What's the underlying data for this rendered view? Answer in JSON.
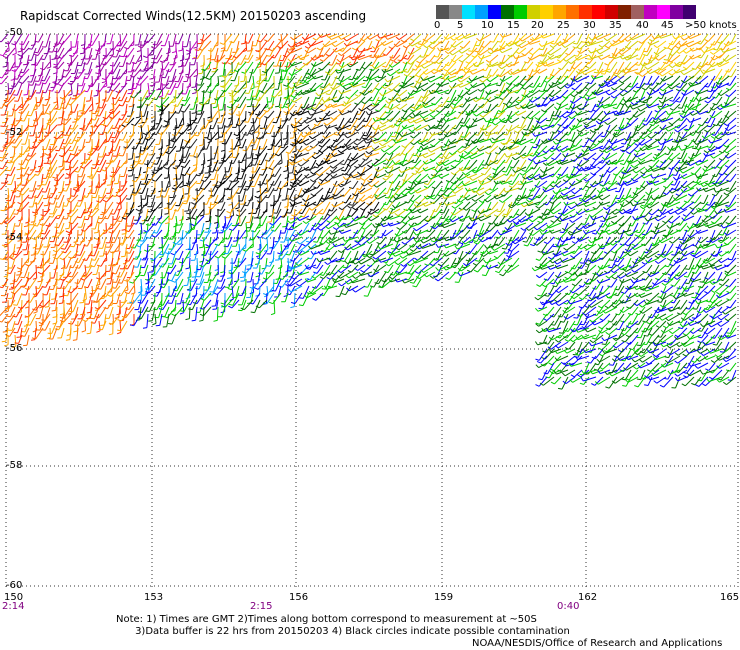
{
  "title": "Rapidscat Corrected Winds(12.5KM) 20150203 ascending",
  "legend": {
    "labels": [
      "0",
      "5",
      "10",
      "15",
      "20",
      "25",
      "30",
      "35",
      "40",
      "45",
      ">50 knots"
    ],
    "colors": [
      "#555555",
      "#888888",
      "#00e0ff",
      "#00a0ff",
      "#0000ff",
      "#007000",
      "#00cc00",
      "#d0d000",
      "#ffd000",
      "#ffa500",
      "#ff7000",
      "#ff3000",
      "#ff0000",
      "#d00000",
      "#802000",
      "#a06060",
      "#c000c0",
      "#ff00ff",
      "#8000a0",
      "#400070"
    ]
  },
  "latitudes": [
    "-50",
    "-52",
    "-54",
    "-56",
    "-58",
    "-60"
  ],
  "longitudes": [
    "150",
    "153",
    "156",
    "159",
    "162",
    "165"
  ],
  "times": [
    "2:14",
    "2:15",
    "0:40"
  ],
  "note": "Note: 1) Times are GMT 2)Times along bottom correspond to measurement at ~50S\n      3)Data buffer is 22 hrs from 20150203 4) Black circles indicate possible contamination",
  "credit": "NOAA/NESDIS/Office of Research and Applications"
}
